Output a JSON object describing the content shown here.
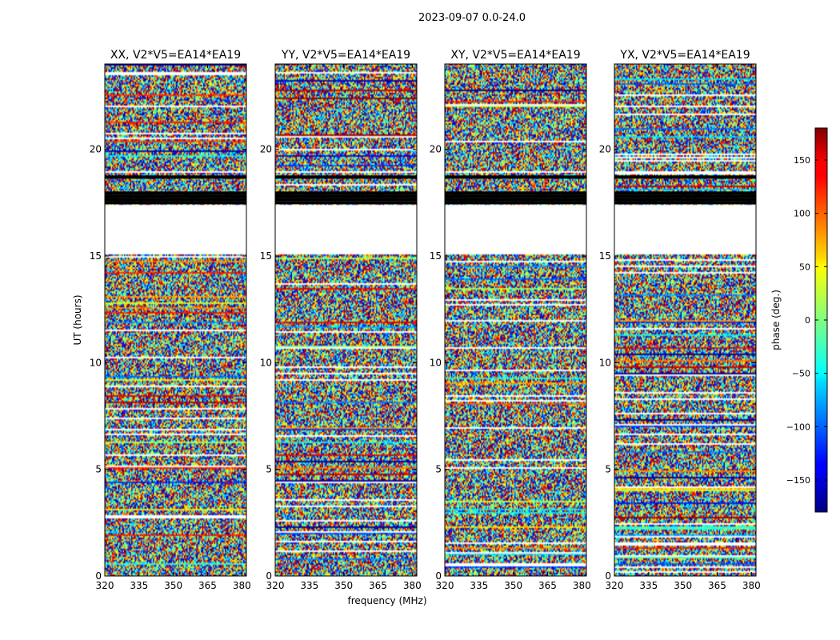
{
  "figure": {
    "suptitle": "2023-09-07 0.0-24.0"
  },
  "chart_data": [
    {
      "type": "heatmap",
      "title": "XX, V2*V5=EA14*EA19",
      "pol": "XX",
      "xlabel": "frequency (MHz)",
      "ylabel": "UT (hours)",
      "xlim": [
        320,
        382
      ],
      "ylim": [
        0,
        24
      ],
      "xticks": [
        320,
        335,
        350,
        365,
        380
      ],
      "yticks": [
        0,
        5,
        10,
        15,
        20
      ],
      "zlabel": "phase (deg.)",
      "zlim": [
        -180,
        180
      ]
    },
    {
      "type": "heatmap",
      "title": "YY, V2*V5=EA14*EA19",
      "pol": "YY",
      "xlabel": "frequency (MHz)",
      "ylabel": "UT (hours)",
      "xlim": [
        320,
        382
      ],
      "ylim": [
        0,
        24
      ],
      "xticks": [
        320,
        335,
        350,
        365,
        380
      ],
      "yticks": [
        0,
        5,
        10,
        15,
        20
      ],
      "zlabel": "phase (deg.)",
      "zlim": [
        -180,
        180
      ]
    },
    {
      "type": "heatmap",
      "title": "XY, V2*V5=EA14*EA19",
      "pol": "XY",
      "xlabel": "frequency (MHz)",
      "ylabel": "UT (hours)",
      "xlim": [
        320,
        382
      ],
      "ylim": [
        0,
        24
      ],
      "xticks": [
        320,
        335,
        350,
        365,
        380
      ],
      "yticks": [
        0,
        5,
        10,
        15,
        20
      ],
      "zlabel": "phase (deg.)",
      "zlim": [
        -180,
        180
      ]
    },
    {
      "type": "heatmap",
      "title": "YX, V2*V5=EA14*EA19",
      "pol": "YX",
      "xlabel": "frequency (MHz)",
      "ylabel": "UT (hours)",
      "xlim": [
        320,
        382
      ],
      "ylim": [
        0,
        24
      ],
      "xticks": [
        320,
        335,
        350,
        365,
        380
      ],
      "yticks": [
        0,
        5,
        10,
        15,
        20
      ],
      "zlabel": "phase (deg.)",
      "zlim": [
        -180,
        180
      ]
    }
  ],
  "shared": {
    "xlabel": "frequency (MHz)",
    "ylabel": "UT (hours)",
    "colorbar": {
      "label": "phase (deg.)",
      "ticks": [
        150,
        100,
        50,
        0,
        -50,
        -100,
        -150
      ],
      "tick_labels": [
        "150",
        "100",
        "50",
        "0",
        "−50",
        "−100",
        "−150"
      ],
      "min": -180,
      "max": 180,
      "colormap": "jet"
    },
    "flagged_ut_ranges_hours": [
      [
        15.1,
        17.4
      ],
      [
        18.9,
        19.0
      ]
    ],
    "black_band_ut_hours": [
      17.5,
      17.65,
      17.8,
      17.95,
      18.7
    ]
  }
}
